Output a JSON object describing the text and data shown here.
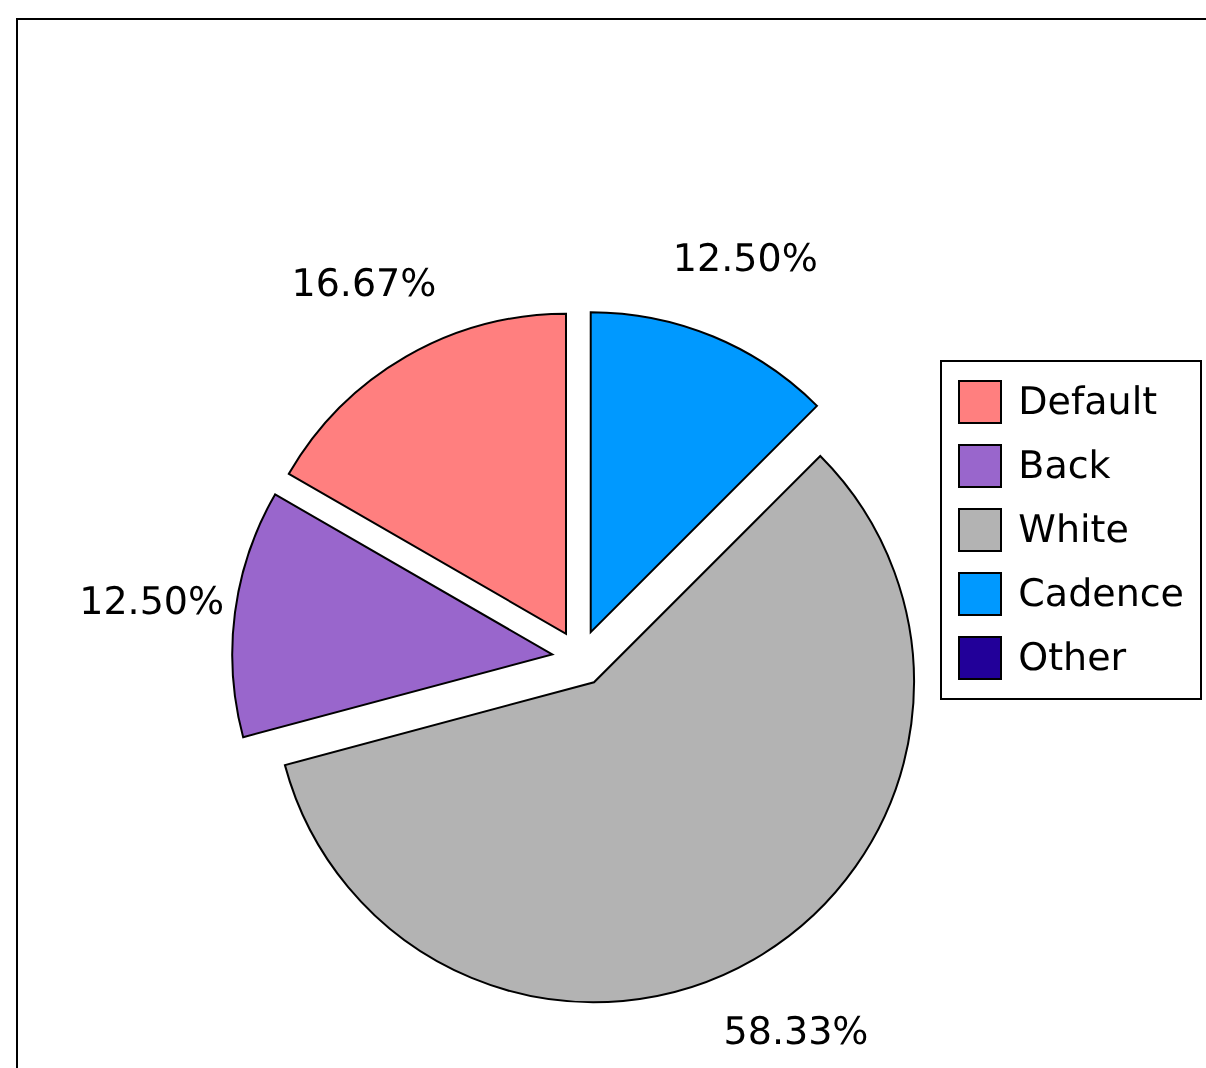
{
  "chart_data": {
    "type": "pie",
    "categories": [
      "Default",
      "Back",
      "White",
      "Cadence",
      "Other"
    ],
    "values": [
      16.67,
      12.5,
      58.33,
      12.5,
      0
    ],
    "colors": [
      "#ff7f7f",
      "#9966cc",
      "#b3b3b3",
      "#0099ff",
      "#220099"
    ],
    "value_labels": [
      "16.67%",
      "12.50%",
      "58.33%",
      "12.50%",
      null
    ],
    "legend": "right"
  }
}
